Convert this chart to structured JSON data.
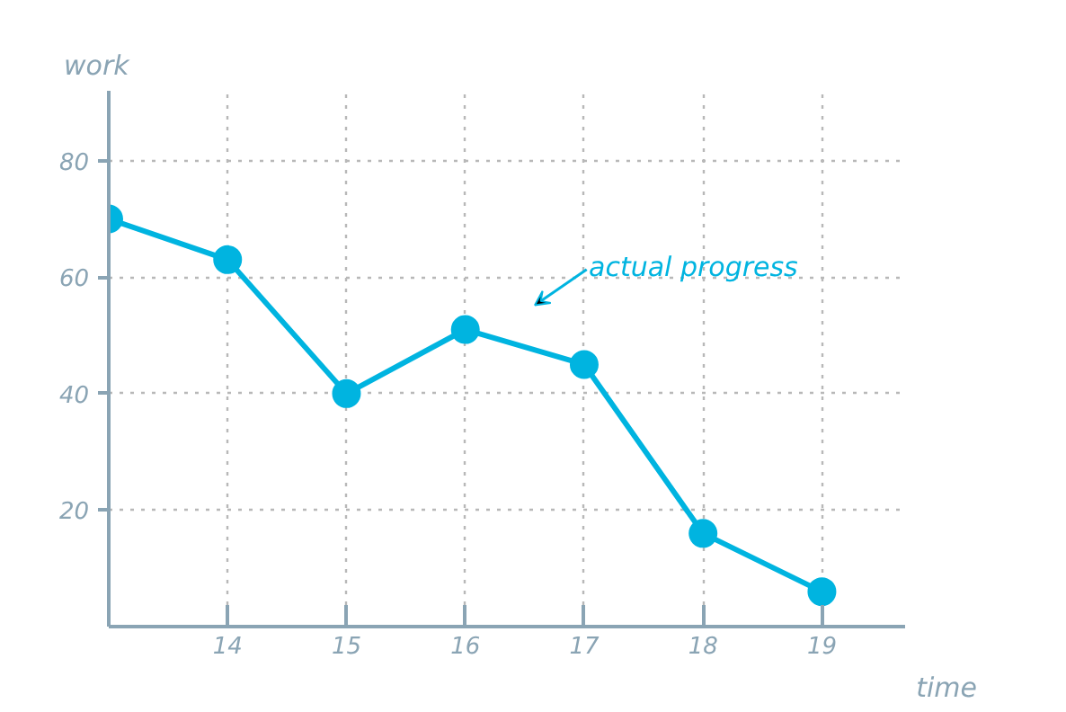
{
  "chart_data": {
    "type": "line",
    "xlabel": "time",
    "ylabel": "work",
    "x": [
      13,
      14,
      15,
      16,
      17,
      18,
      19
    ],
    "series": [
      {
        "color": "#00b4e0",
        "values": [
          70,
          63,
          40,
          51,
          45,
          16,
          6
        ]
      }
    ],
    "xlim": [
      13,
      19.7
    ],
    "ylim": [
      0,
      92
    ],
    "xticks": [
      14,
      15,
      16,
      17,
      18,
      19
    ],
    "yticks": [
      20,
      40,
      60,
      80
    ],
    "grid": true,
    "marker": "circle",
    "line_style": "solid",
    "annotations": [
      "actual progress"
    ]
  }
}
